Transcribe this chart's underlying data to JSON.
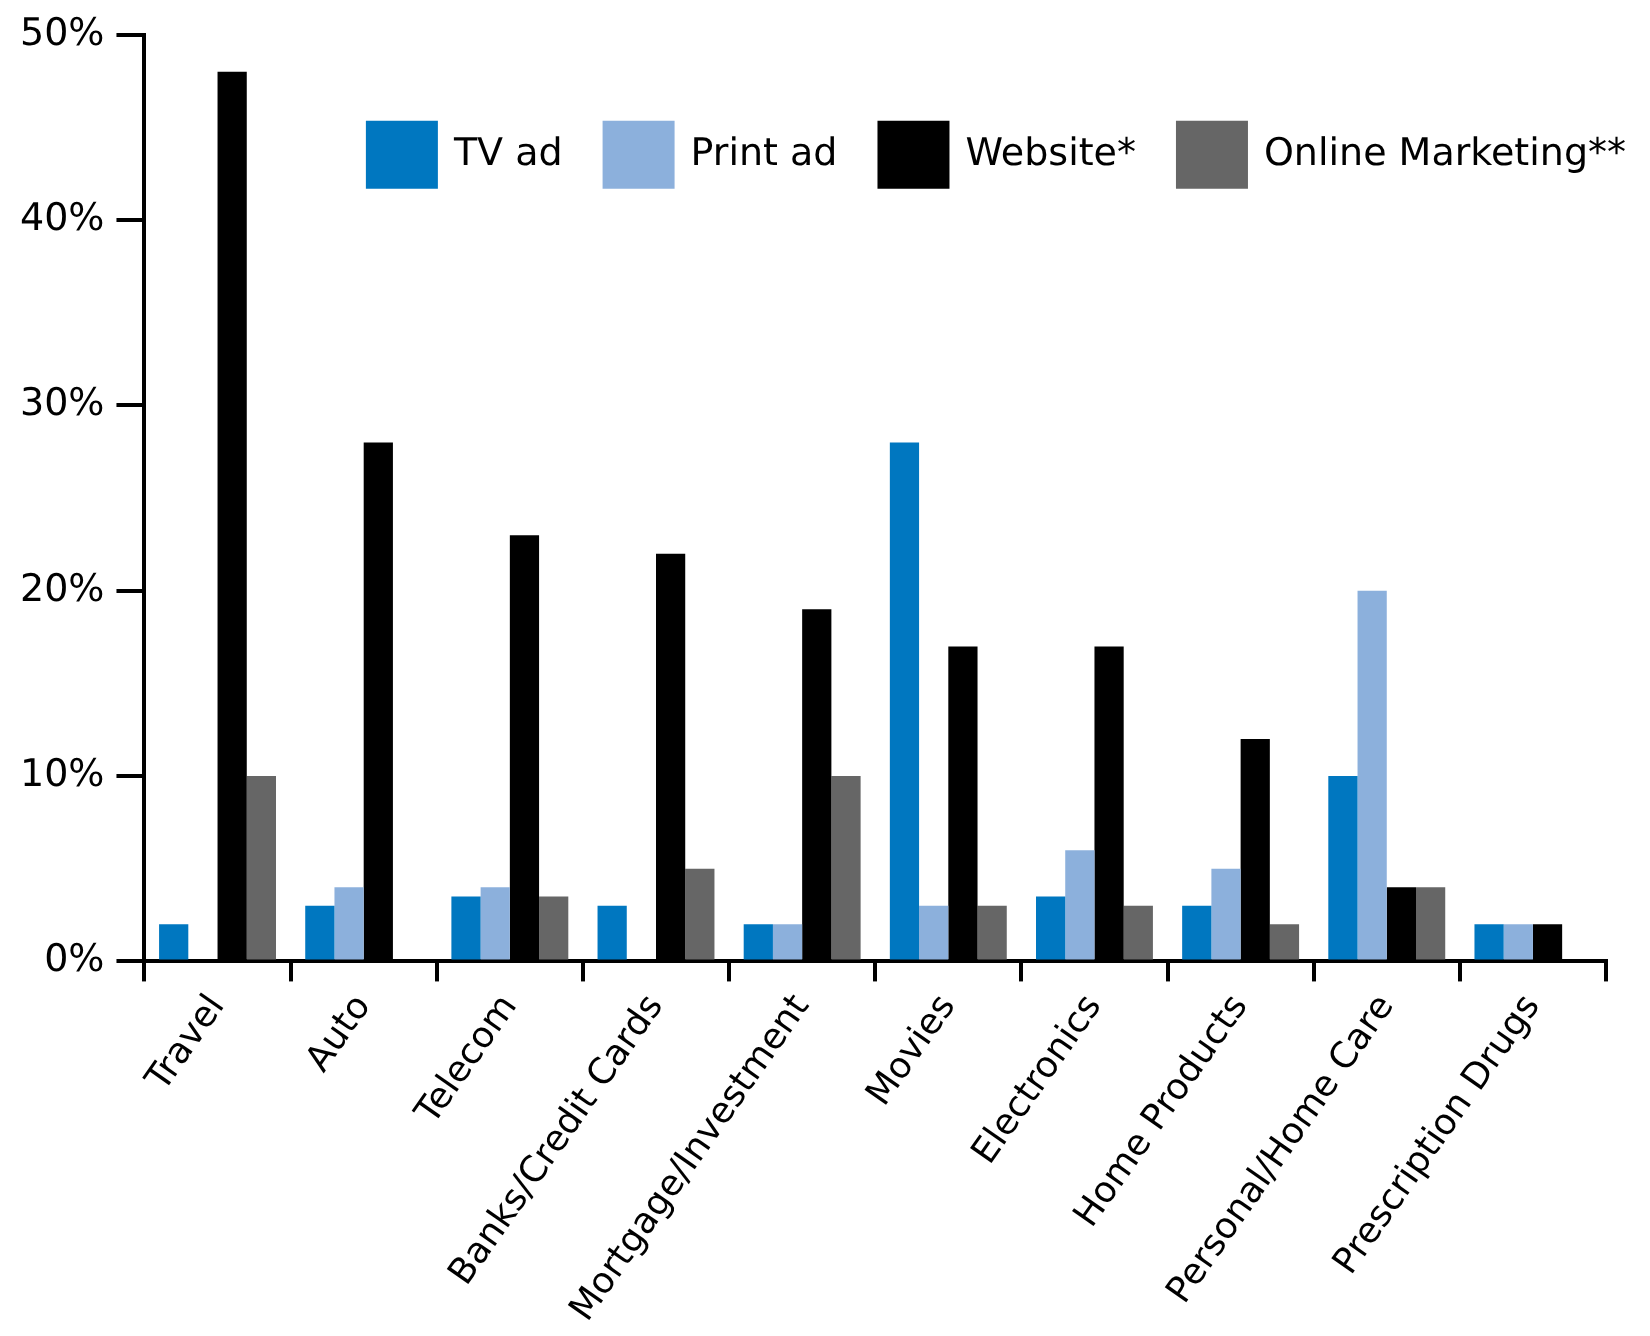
{
  "chart_data": {
    "type": "bar",
    "categories": [
      "Travel",
      "Auto",
      "Telecom",
      "Banks/Credit Cards",
      "Mortgage/Investment",
      "Movies",
      "Electronics",
      "Home Products",
      "Personal/Home Care",
      "Prescription Drugs"
    ],
    "series": [
      {
        "name": "TV ad",
        "color": "#0077c0",
        "values": [
          2,
          3,
          3.5,
          3,
          2,
          28,
          3.5,
          3,
          10,
          2
        ]
      },
      {
        "name": "Print ad",
        "color": "#8cb0dc",
        "values": [
          0,
          4,
          4,
          0,
          2,
          3,
          6,
          5,
          20,
          2
        ]
      },
      {
        "name": "Website*",
        "color": "#000000",
        "values": [
          48,
          28,
          23,
          22,
          19,
          17,
          17,
          12,
          4,
          2
        ]
      },
      {
        "name": "Online Marketing**",
        "color": "#666666",
        "values": [
          10,
          0,
          3.5,
          5,
          10,
          3,
          3,
          2,
          4,
          0
        ]
      }
    ],
    "ylim": [
      0,
      50
    ],
    "yticks": [
      {
        "value": 0,
        "label": "0%"
      },
      {
        "value": 10,
        "label": "10%"
      },
      {
        "value": 20,
        "label": "20%"
      },
      {
        "value": 30,
        "label": "30%"
      },
      {
        "value": 40,
        "label": "40%"
      },
      {
        "value": 50,
        "label": "50%"
      }
    ],
    "grid": false,
    "legend": "top right"
  }
}
